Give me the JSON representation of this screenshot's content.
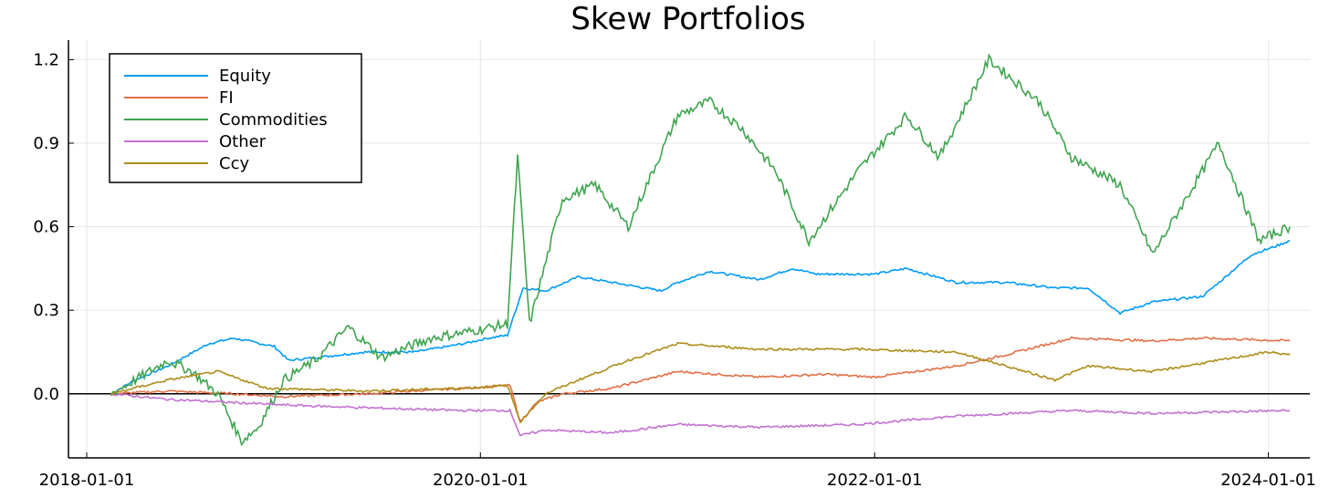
{
  "chart_data": {
    "type": "line",
    "title": "Skew Portfolios",
    "xlabel": "",
    "ylabel": "",
    "x_range": [
      "2018-01-01",
      "2024-03-01"
    ],
    "ylim": [
      -0.23,
      1.27
    ],
    "x_ticks": [
      "2018-01-01",
      "2020-01-01",
      "2022-01-01",
      "2024-01-01"
    ],
    "y_ticks": [
      0.0,
      0.3,
      0.6,
      0.9,
      1.2
    ],
    "y_tick_labels": [
      "0.0",
      "0.3",
      "0.6",
      "0.9",
      "1.2"
    ],
    "grid": true,
    "zero_line": true,
    "legend_position": "top-left",
    "series": [
      {
        "name": "Equity",
        "color": "#009AF9",
        "points": [
          [
            "2018-02-15",
            0.0
          ],
          [
            "2018-04-01",
            0.05
          ],
          [
            "2018-06-01",
            0.1
          ],
          [
            "2018-08-15",
            0.18
          ],
          [
            "2018-10-01",
            0.2
          ],
          [
            "2018-12-15",
            0.17
          ],
          [
            "2019-01-10",
            0.12
          ],
          [
            "2019-03-01",
            0.13
          ],
          [
            "2019-06-01",
            0.15
          ],
          [
            "2019-09-01",
            0.15
          ],
          [
            "2019-12-01",
            0.18
          ],
          [
            "2020-01-15",
            0.2
          ],
          [
            "2020-02-20",
            0.21
          ],
          [
            "2020-03-20",
            0.38
          ],
          [
            "2020-05-01",
            0.37
          ],
          [
            "2020-07-01",
            0.42
          ],
          [
            "2020-09-01",
            0.4
          ],
          [
            "2020-12-01",
            0.37
          ],
          [
            "2021-01-01",
            0.4
          ],
          [
            "2021-03-01",
            0.44
          ],
          [
            "2021-06-01",
            0.41
          ],
          [
            "2021-08-01",
            0.45
          ],
          [
            "2021-09-15",
            0.43
          ],
          [
            "2022-01-01",
            0.43
          ],
          [
            "2022-03-01",
            0.45
          ],
          [
            "2022-06-01",
            0.4
          ],
          [
            "2022-09-01",
            0.4
          ],
          [
            "2022-12-01",
            0.38
          ],
          [
            "2023-02-01",
            0.38
          ],
          [
            "2023-04-01",
            0.29
          ],
          [
            "2023-06-01",
            0.33
          ],
          [
            "2023-09-01",
            0.35
          ],
          [
            "2023-12-01",
            0.5
          ],
          [
            "2024-01-15",
            0.53
          ],
          [
            "2024-02-10",
            0.55
          ]
        ]
      },
      {
        "name": "FI",
        "color": "#E26F46",
        "points": [
          [
            "2018-02-15",
            0.0
          ],
          [
            "2018-06-01",
            0.01
          ],
          [
            "2018-10-01",
            0.0
          ],
          [
            "2019-01-01",
            -0.01
          ],
          [
            "2019-06-01",
            0.0
          ],
          [
            "2019-12-01",
            0.02
          ],
          [
            "2020-02-25",
            0.03
          ],
          [
            "2020-03-15",
            -0.1
          ],
          [
            "2020-04-15",
            -0.03
          ],
          [
            "2020-06-01",
            0.0
          ],
          [
            "2020-09-01",
            0.02
          ],
          [
            "2021-01-01",
            0.08
          ],
          [
            "2021-06-01",
            0.06
          ],
          [
            "2021-10-01",
            0.07
          ],
          [
            "2022-01-01",
            0.06
          ],
          [
            "2022-06-01",
            0.1
          ],
          [
            "2022-09-01",
            0.14
          ],
          [
            "2023-01-01",
            0.2
          ],
          [
            "2023-06-01",
            0.19
          ],
          [
            "2023-09-01",
            0.2
          ],
          [
            "2024-02-10",
            0.19
          ]
        ]
      },
      {
        "name": "Commodities",
        "color": "#3EA44E",
        "points": [
          [
            "2018-02-15",
            0.0
          ],
          [
            "2018-04-01",
            0.05
          ],
          [
            "2018-06-01",
            0.12
          ],
          [
            "2018-07-15",
            0.08
          ],
          [
            "2018-09-01",
            0.0
          ],
          [
            "2018-10-15",
            -0.17
          ],
          [
            "2018-11-15",
            -0.12
          ],
          [
            "2019-01-01",
            0.05
          ],
          [
            "2019-03-01",
            0.12
          ],
          [
            "2019-05-01",
            0.24
          ],
          [
            "2019-07-01",
            0.13
          ],
          [
            "2019-10-01",
            0.2
          ],
          [
            "2019-12-01",
            0.22
          ],
          [
            "2020-02-20",
            0.25
          ],
          [
            "2020-03-10",
            0.85
          ],
          [
            "2020-04-01",
            0.25
          ],
          [
            "2020-06-01",
            0.7
          ],
          [
            "2020-08-01",
            0.75
          ],
          [
            "2020-10-01",
            0.6
          ],
          [
            "2021-01-01",
            1.0
          ],
          [
            "2021-03-01",
            1.05
          ],
          [
            "2021-05-01",
            0.95
          ],
          [
            "2021-07-01",
            0.8
          ],
          [
            "2021-09-01",
            0.55
          ],
          [
            "2021-12-01",
            0.8
          ],
          [
            "2022-03-01",
            1.0
          ],
          [
            "2022-05-01",
            0.85
          ],
          [
            "2022-08-01",
            1.2
          ],
          [
            "2022-11-01",
            1.05
          ],
          [
            "2023-01-01",
            0.85
          ],
          [
            "2023-04-01",
            0.75
          ],
          [
            "2023-06-01",
            0.5
          ],
          [
            "2023-08-01",
            0.7
          ],
          [
            "2023-10-01",
            0.9
          ],
          [
            "2023-12-15",
            0.55
          ],
          [
            "2024-02-10",
            0.6
          ]
        ]
      },
      {
        "name": "Other",
        "color": "#C271D2",
        "points": [
          [
            "2018-02-15",
            0.0
          ],
          [
            "2018-06-01",
            -0.02
          ],
          [
            "2019-01-01",
            -0.04
          ],
          [
            "2019-06-01",
            -0.05
          ],
          [
            "2019-12-01",
            -0.06
          ],
          [
            "2020-02-25",
            -0.06
          ],
          [
            "2020-03-15",
            -0.15
          ],
          [
            "2020-05-01",
            -0.13
          ],
          [
            "2020-09-01",
            -0.14
          ],
          [
            "2021-01-01",
            -0.11
          ],
          [
            "2021-06-01",
            -0.12
          ],
          [
            "2021-12-01",
            -0.11
          ],
          [
            "2022-06-01",
            -0.08
          ],
          [
            "2023-01-01",
            -0.06
          ],
          [
            "2023-06-01",
            -0.07
          ],
          [
            "2024-02-10",
            -0.06
          ]
        ]
      },
      {
        "name": "Ccy",
        "color": "#AC8D18",
        "points": [
          [
            "2018-02-15",
            0.0
          ],
          [
            "2018-06-01",
            0.05
          ],
          [
            "2018-09-01",
            0.08
          ],
          [
            "2018-12-01",
            0.02
          ],
          [
            "2019-06-01",
            0.01
          ],
          [
            "2019-12-01",
            0.02
          ],
          [
            "2020-02-20",
            0.03
          ],
          [
            "2020-03-15",
            -0.1
          ],
          [
            "2020-05-01",
            0.0
          ],
          [
            "2020-07-01",
            0.05
          ],
          [
            "2020-10-01",
            0.12
          ],
          [
            "2021-01-01",
            0.18
          ],
          [
            "2021-06-01",
            0.16
          ],
          [
            "2021-12-01",
            0.16
          ],
          [
            "2022-06-01",
            0.15
          ],
          [
            "2022-09-01",
            0.1
          ],
          [
            "2022-12-01",
            0.05
          ],
          [
            "2023-02-01",
            0.1
          ],
          [
            "2023-06-01",
            0.08
          ],
          [
            "2023-10-01",
            0.12
          ],
          [
            "2024-01-01",
            0.15
          ],
          [
            "2024-02-10",
            0.14
          ]
        ]
      }
    ]
  }
}
